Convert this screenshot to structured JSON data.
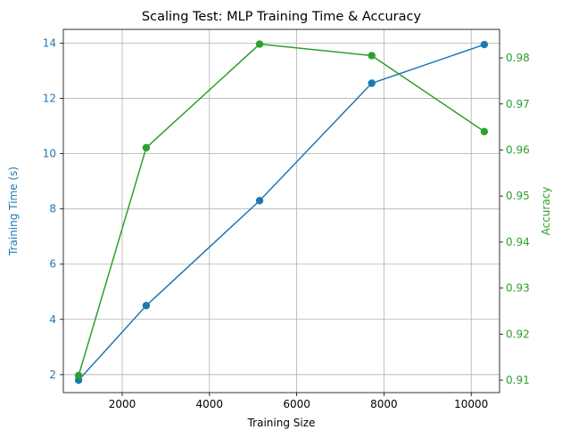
{
  "colors": {
    "time": "#1f77b4",
    "accuracy": "#2ca02c"
  },
  "chart_data": {
    "type": "line",
    "title": "Scaling Test: MLP Training Time & Accuracy",
    "xlabel": "Training Size",
    "ylabel": "Training Time (s)",
    "y2label": "Accuracy",
    "x": [
      1000,
      2550,
      5150,
      7720,
      10300
    ],
    "xlim": [
      650,
      10650
    ],
    "ylim": [
      1.35,
      14.5
    ],
    "y2lim": [
      0.9073,
      0.9862
    ],
    "xticks": [
      2000,
      4000,
      6000,
      8000,
      10000
    ],
    "yticks": [
      2,
      4,
      6,
      8,
      10,
      12,
      14
    ],
    "y2ticks": [
      0.91,
      0.92,
      0.93,
      0.94,
      0.95,
      0.96,
      0.97,
      0.98
    ],
    "grid": true,
    "series": [
      {
        "name": "Training Time (s)",
        "axis": "left",
        "color": "#1f77b4",
        "values": [
          1.8,
          4.5,
          8.3,
          12.55,
          13.95
        ]
      },
      {
        "name": "Accuracy",
        "axis": "right",
        "color": "#2ca02c",
        "values": [
          0.911,
          0.9605,
          0.983,
          0.9805,
          0.964
        ]
      }
    ]
  }
}
